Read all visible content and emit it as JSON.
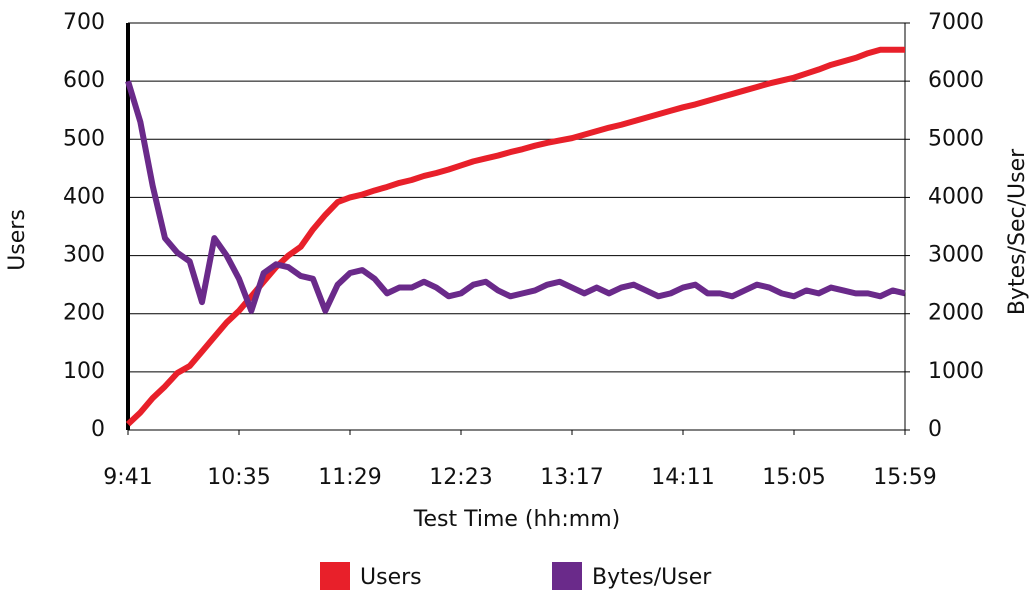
{
  "chart_data": {
    "type": "line",
    "x_label": "Test Time (hh:mm)",
    "y_label": "Users",
    "y2_label": "Bytes/Sec/User",
    "x": [
      581,
      587,
      593,
      599,
      605,
      611,
      617,
      623,
      629,
      635,
      641,
      647,
      653,
      659,
      665,
      671,
      677,
      683,
      689,
      695,
      701,
      707,
      713,
      719,
      725,
      731,
      737,
      743,
      749,
      755,
      761,
      767,
      773,
      779,
      785,
      791,
      797,
      803,
      809,
      815,
      821,
      827,
      833,
      839,
      845,
      851,
      857,
      863,
      869,
      875,
      881,
      887,
      893,
      899,
      905,
      911,
      917,
      923,
      929,
      935,
      941,
      947,
      953,
      959
    ],
    "xlim": [
      581,
      959
    ],
    "xticks": [
      {
        "value": 581,
        "label": "9:41"
      },
      {
        "value": 635,
        "label": "10:35"
      },
      {
        "value": 689,
        "label": "11:29"
      },
      {
        "value": 743,
        "label": "12:23"
      },
      {
        "value": 797,
        "label": "13:17"
      },
      {
        "value": 851,
        "label": "14:11"
      },
      {
        "value": 905,
        "label": "15:05"
      },
      {
        "value": 959,
        "label": "15:59"
      }
    ],
    "ylim": [
      0,
      700
    ],
    "yticks": [
      0,
      100,
      200,
      300,
      400,
      500,
      600,
      700
    ],
    "y2lim": [
      0,
      7000
    ],
    "y2ticks": [
      0,
      1000,
      2000,
      3000,
      4000,
      5000,
      6000,
      7000
    ],
    "grid": true,
    "series": [
      {
        "name": "Users",
        "color": "#e8202a",
        "values": [
          10,
          30,
          55,
          75,
          98,
          110,
          135,
          160,
          185,
          205,
          230,
          255,
          280,
          300,
          315,
          345,
          370,
          392,
          400,
          405,
          412,
          418,
          425,
          430,
          437,
          442,
          448,
          455,
          462,
          467,
          472,
          478,
          483,
          489,
          494,
          498,
          502,
          508,
          514,
          520,
          525,
          531,
          537,
          543,
          549,
          555,
          560,
          566,
          572,
          578,
          584,
          590,
          596,
          601,
          606,
          613,
          620,
          628,
          634,
          640,
          648,
          654,
          654,
          654
        ]
      },
      {
        "name": "Bytes/User",
        "color": "#6a2a8a",
        "axis": "y2",
        "values": [
          6000,
          5300,
          4200,
          3300,
          3050,
          2900,
          2200,
          3300,
          3000,
          2600,
          2050,
          2700,
          2850,
          2800,
          2650,
          2600,
          2050,
          2500,
          2700,
          2750,
          2600,
          2350,
          2450,
          2450,
          2550,
          2450,
          2300,
          2350,
          2500,
          2550,
          2400,
          2300,
          2350,
          2400,
          2500,
          2550,
          2450,
          2350,
          2450,
          2350,
          2450,
          2500,
          2400,
          2300,
          2350,
          2450,
          2500,
          2350,
          2350,
          2300,
          2400,
          2500,
          2450,
          2350,
          2300,
          2400,
          2350,
          2450,
          2400,
          2350,
          2350,
          2300,
          2400,
          2350
        ]
      }
    ]
  }
}
